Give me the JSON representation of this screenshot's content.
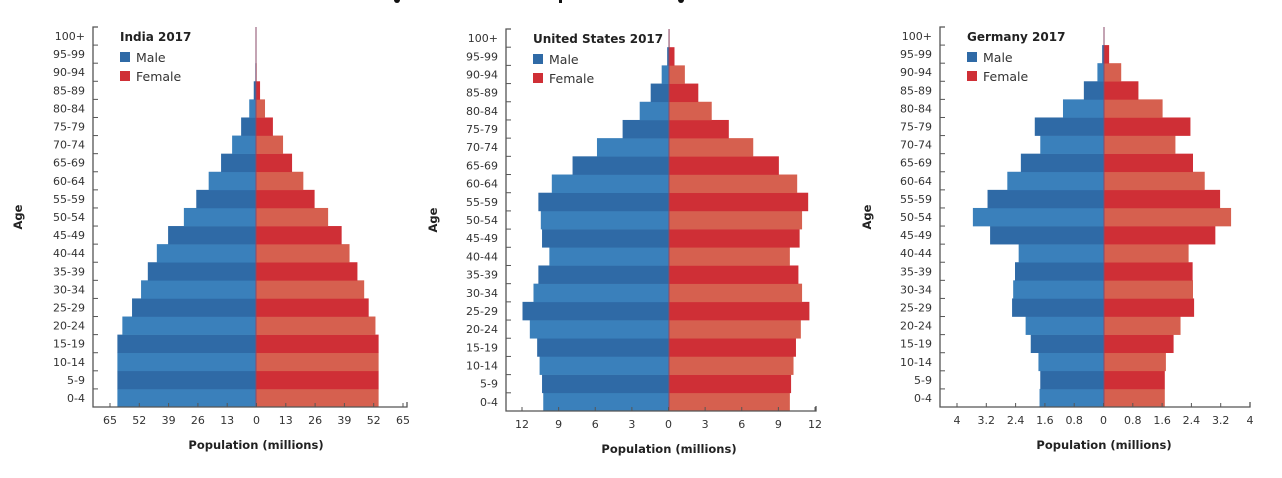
{
  "chart_data": [
    {
      "type": "bar",
      "subtype": "population-pyramid",
      "title": "India 2017",
      "xlabel": "Population (millions)",
      "ylabel": "Age",
      "categories": [
        "0-4",
        "5-9",
        "10-14",
        "15-19",
        "20-24",
        "25-29",
        "30-34",
        "35-39",
        "40-44",
        "45-49",
        "50-54",
        "55-59",
        "60-64",
        "65-69",
        "70-74",
        "75-79",
        "80-84",
        "85-89",
        "90-94",
        "95-99",
        "100+"
      ],
      "xlim": [
        -65,
        65
      ],
      "xticks": [
        "65",
        "52",
        "39",
        "26",
        "13",
        "0",
        "13",
        "26",
        "39",
        "52",
        "65"
      ],
      "legend": "top-left",
      "series": [
        {
          "name": "Male",
          "color": "#2f6aa6",
          "color_alt": "#3a80bb",
          "values": [
            61.5,
            61.5,
            61.5,
            61.5,
            59.3,
            55,
            51,
            48,
            44,
            39,
            32,
            26.5,
            21,
            15.5,
            10.6,
            6.6,
            3,
            1,
            0.3,
            0.1,
            0.05
          ]
        },
        {
          "name": "Female",
          "color": "#cf2f36",
          "color_alt": "#d6604f",
          "values": [
            54.4,
            54.4,
            54.4,
            54.4,
            53,
            50,
            48,
            45,
            41.5,
            38,
            32,
            26,
            21,
            16,
            12,
            7.5,
            4,
            1.8,
            0.3,
            0.1,
            0.05
          ]
        }
      ]
    },
    {
      "type": "bar",
      "subtype": "population-pyramid",
      "title": "United States 2017",
      "xlabel": "Population (millions)",
      "ylabel": "Age",
      "categories": [
        "0-4",
        "5-9",
        "10-14",
        "15-19",
        "20-24",
        "25-29",
        "30-34",
        "35-39",
        "40-44",
        "45-49",
        "50-54",
        "55-59",
        "60-64",
        "65-69",
        "70-74",
        "75-79",
        "80-84",
        "85-89",
        "90-94",
        "95-99",
        "100+"
      ],
      "xlim": [
        -12,
        12
      ],
      "xticks": [
        "12",
        "9",
        "6",
        "3",
        "0",
        "3",
        "6",
        "9",
        "12"
      ],
      "legend": "top-left",
      "series": [
        {
          "name": "Male",
          "color": "#2f6aa6",
          "color_alt": "#3a80bb",
          "values": [
            10.3,
            10.4,
            10.6,
            10.8,
            11.4,
            12.0,
            11.1,
            10.7,
            9.8,
            10.4,
            10.5,
            10.7,
            9.6,
            7.9,
            5.9,
            3.8,
            2.4,
            1.5,
            0.6,
            0.15,
            0.02
          ]
        },
        {
          "name": "Female",
          "color": "#cf2f36",
          "color_alt": "#d6604f",
          "values": [
            9.9,
            10.0,
            10.2,
            10.4,
            10.8,
            11.5,
            10.9,
            10.6,
            9.9,
            10.7,
            10.9,
            11.4,
            10.5,
            9.0,
            6.9,
            4.9,
            3.5,
            2.4,
            1.3,
            0.45,
            0.05
          ]
        }
      ]
    },
    {
      "type": "bar",
      "subtype": "population-pyramid",
      "title": "Germany 2017",
      "xlabel": "Population (millions)",
      "ylabel": "Age",
      "categories": [
        "0-4",
        "5-9",
        "10-14",
        "15-19",
        "20-24",
        "25-29",
        "30-34",
        "35-39",
        "40-44",
        "45-49",
        "50-54",
        "55-59",
        "60-64",
        "65-69",
        "70-74",
        "75-79",
        "80-84",
        "85-89",
        "90-94",
        "95-99",
        "100+"
      ],
      "xlim": [
        -4,
        4
      ],
      "xticks": [
        "4",
        "3.2",
        "2.4",
        "1.6",
        "0.8",
        "0",
        "0.8",
        "1.6",
        "2.4",
        "3.2",
        "4"
      ],
      "legend": "top-left",
      "series": [
        {
          "name": "Male",
          "color": "#2f6aa6",
          "color_alt": "#3a80bb",
          "values": [
            1.76,
            1.74,
            1.79,
            2.0,
            2.14,
            2.51,
            2.48,
            2.43,
            2.33,
            3.11,
            3.58,
            3.18,
            2.64,
            2.27,
            1.74,
            1.89,
            1.12,
            0.55,
            0.18,
            0.05,
            0.0
          ]
        },
        {
          "name": "Female",
          "color": "#cf2f36",
          "color_alt": "#d6604f",
          "values": [
            1.66,
            1.66,
            1.69,
            1.9,
            2.09,
            2.46,
            2.43,
            2.42,
            2.31,
            3.04,
            3.47,
            3.17,
            2.75,
            2.43,
            1.95,
            2.36,
            1.6,
            0.94,
            0.47,
            0.14,
            0.01
          ]
        }
      ]
    }
  ]
}
